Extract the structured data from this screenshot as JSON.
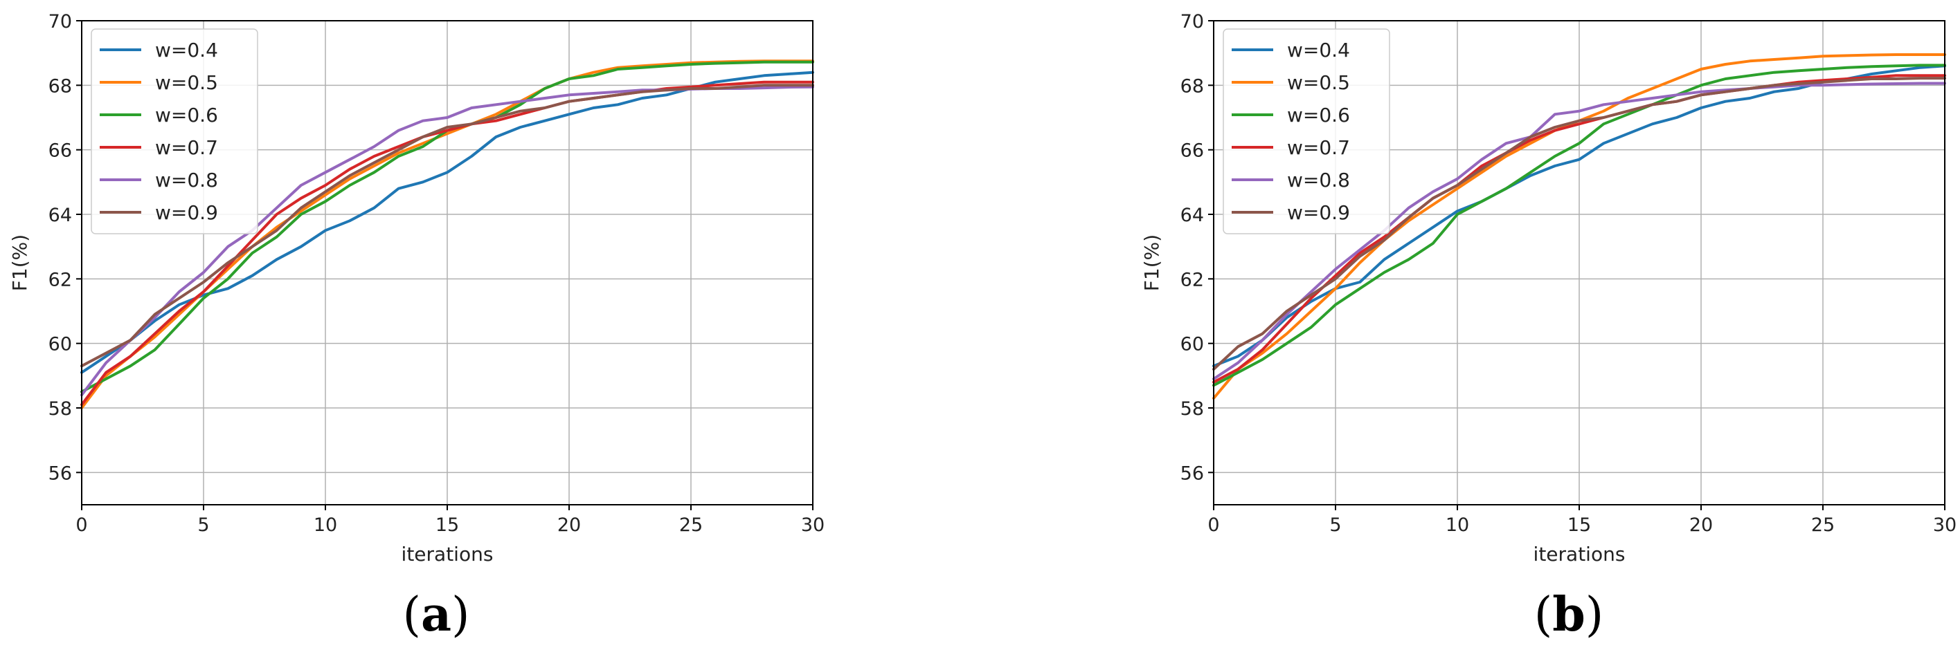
{
  "figure": {
    "panels": [
      {
        "label": "(a)",
        "label_parts": {
          "open": "(",
          "letter": "a",
          "close": ")"
        }
      },
      {
        "label": "(b)",
        "label_parts": {
          "open": "(",
          "letter": "b",
          "close": ")"
        }
      }
    ]
  },
  "chart_data": [
    {
      "type": "line",
      "title": "",
      "xlabel": "iterations",
      "ylabel": "F1(%)",
      "xlim": [
        0,
        30
      ],
      "ylim": [
        55,
        70
      ],
      "xticks": [
        0,
        5,
        10,
        15,
        20,
        25,
        30
      ],
      "yticks": [
        56,
        58,
        60,
        62,
        64,
        66,
        68,
        70
      ],
      "grid": true,
      "legend_position": "top-left",
      "x": [
        0,
        1,
        2,
        3,
        4,
        5,
        6,
        7,
        8,
        9,
        10,
        11,
        12,
        13,
        14,
        15,
        16,
        17,
        18,
        19,
        20,
        21,
        22,
        23,
        24,
        25,
        26,
        27,
        28,
        29,
        30
      ],
      "series": [
        {
          "name": "w=0.4",
          "color": "#1f77b4",
          "values": [
            59.1,
            59.6,
            60.1,
            60.7,
            61.2,
            61.5,
            61.7,
            62.1,
            62.6,
            63.0,
            63.5,
            63.8,
            64.2,
            64.8,
            65.0,
            65.3,
            65.8,
            66.4,
            66.7,
            66.9,
            67.1,
            67.3,
            67.4,
            67.6,
            67.7,
            67.9,
            68.1,
            68.2,
            68.3,
            68.35,
            68.4
          ]
        },
        {
          "name": "w=0.5",
          "color": "#ff7f0e",
          "values": [
            58.0,
            59.0,
            59.6,
            60.2,
            60.9,
            61.6,
            62.3,
            63.0,
            63.6,
            64.1,
            64.6,
            65.1,
            65.5,
            65.9,
            66.2,
            66.5,
            66.8,
            67.1,
            67.5,
            67.9,
            68.2,
            68.4,
            68.55,
            68.6,
            68.65,
            68.7,
            68.72,
            68.74,
            68.75,
            68.75,
            68.75
          ]
        },
        {
          "name": "w=0.6",
          "color": "#2ca02c",
          "values": [
            58.5,
            58.9,
            59.3,
            59.8,
            60.6,
            61.4,
            62.0,
            62.8,
            63.3,
            64.0,
            64.4,
            64.9,
            65.3,
            65.8,
            66.1,
            66.6,
            66.8,
            67.0,
            67.4,
            67.9,
            68.2,
            68.3,
            68.5,
            68.55,
            68.6,
            68.65,
            68.68,
            68.7,
            68.72,
            68.72,
            68.72
          ]
        },
        {
          "name": "w=0.7",
          "color": "#d62728",
          "values": [
            58.1,
            59.1,
            59.6,
            60.3,
            61.0,
            61.6,
            62.4,
            63.2,
            64.0,
            64.5,
            64.9,
            65.4,
            65.8,
            66.1,
            66.4,
            66.6,
            66.8,
            66.9,
            67.1,
            67.3,
            67.5,
            67.6,
            67.7,
            67.8,
            67.9,
            67.95,
            68.0,
            68.05,
            68.1,
            68.1,
            68.1
          ]
        },
        {
          "name": "w=0.8",
          "color": "#9467bd",
          "values": [
            58.4,
            59.4,
            60.1,
            60.8,
            61.6,
            62.2,
            63.0,
            63.5,
            64.2,
            64.9,
            65.3,
            65.7,
            66.1,
            66.6,
            66.9,
            67.0,
            67.3,
            67.4,
            67.5,
            67.6,
            67.7,
            67.75,
            67.8,
            67.85,
            67.85,
            67.88,
            67.9,
            67.9,
            67.92,
            67.94,
            67.95
          ]
        },
        {
          "name": "w=0.9",
          "color": "#8c564b",
          "values": [
            59.3,
            59.7,
            60.1,
            60.9,
            61.4,
            61.9,
            62.5,
            63.0,
            63.5,
            64.2,
            64.7,
            65.2,
            65.6,
            66.0,
            66.4,
            66.7,
            66.8,
            67.0,
            67.2,
            67.3,
            67.5,
            67.6,
            67.7,
            67.8,
            67.85,
            67.9,
            67.9,
            67.95,
            68.0,
            68.0,
            68.0
          ]
        }
      ]
    },
    {
      "type": "line",
      "title": "",
      "xlabel": "iterations",
      "ylabel": "F1(%)",
      "xlim": [
        0,
        30
      ],
      "ylim": [
        55,
        70
      ],
      "xticks": [
        0,
        5,
        10,
        15,
        20,
        25,
        30
      ],
      "yticks": [
        56,
        58,
        60,
        62,
        64,
        66,
        68,
        70
      ],
      "grid": true,
      "legend_position": "top-left",
      "x": [
        0,
        1,
        2,
        3,
        4,
        5,
        6,
        7,
        8,
        9,
        10,
        11,
        12,
        13,
        14,
        15,
        16,
        17,
        18,
        19,
        20,
        21,
        22,
        23,
        24,
        25,
        26,
        27,
        28,
        29,
        30
      ],
      "series": [
        {
          "name": "w=0.4",
          "color": "#1f77b4",
          "values": [
            59.3,
            59.6,
            60.1,
            60.8,
            61.3,
            61.7,
            61.9,
            62.6,
            63.1,
            63.6,
            64.1,
            64.4,
            64.8,
            65.2,
            65.5,
            65.7,
            66.2,
            66.5,
            66.8,
            67.0,
            67.3,
            67.5,
            67.6,
            67.8,
            67.9,
            68.1,
            68.2,
            68.35,
            68.45,
            68.55,
            68.6
          ]
        },
        {
          "name": "w=0.5",
          "color": "#ff7f0e",
          "values": [
            58.3,
            59.2,
            59.7,
            60.3,
            61.0,
            61.7,
            62.5,
            63.2,
            63.8,
            64.3,
            64.8,
            65.3,
            65.8,
            66.2,
            66.6,
            66.9,
            67.2,
            67.6,
            67.9,
            68.2,
            68.5,
            68.65,
            68.75,
            68.8,
            68.85,
            68.9,
            68.92,
            68.94,
            68.95,
            68.95,
            68.95
          ]
        },
        {
          "name": "w=0.6",
          "color": "#2ca02c",
          "values": [
            58.7,
            59.1,
            59.5,
            60.0,
            60.5,
            61.2,
            61.7,
            62.2,
            62.6,
            63.1,
            64.0,
            64.4,
            64.8,
            65.3,
            65.8,
            66.2,
            66.8,
            67.1,
            67.4,
            67.7,
            68.0,
            68.2,
            68.3,
            68.4,
            68.45,
            68.5,
            68.55,
            68.58,
            68.6,
            68.62,
            68.62
          ]
        },
        {
          "name": "w=0.7",
          "color": "#d62728",
          "values": [
            58.8,
            59.2,
            59.8,
            60.6,
            61.4,
            62.1,
            62.8,
            63.3,
            63.9,
            64.5,
            64.9,
            65.5,
            65.9,
            66.3,
            66.6,
            66.8,
            67.0,
            67.2,
            67.4,
            67.5,
            67.7,
            67.8,
            67.9,
            68.0,
            68.1,
            68.15,
            68.2,
            68.25,
            68.3,
            68.3,
            68.3
          ]
        },
        {
          "name": "w=0.8",
          "color": "#9467bd",
          "values": [
            58.9,
            59.4,
            60.1,
            60.9,
            61.6,
            62.3,
            62.9,
            63.5,
            64.2,
            64.7,
            65.1,
            65.7,
            66.2,
            66.4,
            67.1,
            67.2,
            67.4,
            67.5,
            67.6,
            67.7,
            67.8,
            67.85,
            67.9,
            67.95,
            68.0,
            68.0,
            68.02,
            68.04,
            68.05,
            68.06,
            68.06
          ]
        },
        {
          "name": "w=0.9",
          "color": "#8c564b",
          "values": [
            59.2,
            59.9,
            60.3,
            61.0,
            61.5,
            62.0,
            62.7,
            63.2,
            63.9,
            64.5,
            64.9,
            65.4,
            65.9,
            66.4,
            66.7,
            66.9,
            67.0,
            67.2,
            67.4,
            67.5,
            67.7,
            67.8,
            67.9,
            68.0,
            68.05,
            68.1,
            68.15,
            68.2,
            68.2,
            68.22,
            68.22
          ]
        }
      ]
    }
  ]
}
